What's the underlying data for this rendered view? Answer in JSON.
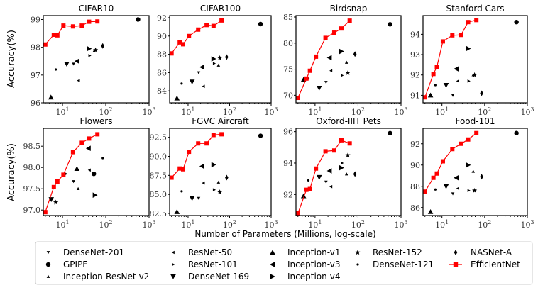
{
  "xlabel": "Number of Parameters (Millions, log-scale)",
  "ylabel": "Accuracy(%)",
  "chart_data": {
    "type": "scatter",
    "xscale": "log",
    "xlim": [
      3.6,
      1000
    ],
    "xticks": [
      "10^1",
      "10^2",
      "10^3"
    ],
    "effnet_params": [
      4,
      6.3,
      7.6,
      10.5,
      17.5,
      28,
      41,
      64
    ],
    "effnet_color": "#ff0000",
    "models": [
      {
        "name": "DenseNet-201",
        "marker": "tri-down-small",
        "params": 18
      },
      {
        "name": "ResNet-50",
        "marker": "tri-left-small",
        "params": 23.5
      },
      {
        "name": "Inception-v1",
        "marker": "tri-up",
        "params": 5.4
      },
      {
        "name": "ResNet-152",
        "marker": "star",
        "params": 58
      },
      {
        "name": "NASNet-A",
        "marker": "thin-diamond",
        "params": 85
      },
      {
        "name": "GPIPE",
        "marker": "octagon",
        "params": 556
      },
      {
        "name": "ResNet-101",
        "marker": "tri-right-small",
        "params": 42.5
      },
      {
        "name": "Inception-v3",
        "marker": "tri-left",
        "params": 21.8
      },
      {
        "name": "DenseNet-121",
        "marker": "dot",
        "params": 7
      },
      {
        "name": "EfficientNet",
        "marker": "square-line",
        "params": null
      },
      {
        "name": "Inception-ResNet-v2",
        "marker": "tri-up-small",
        "params": 54
      },
      {
        "name": "DenseNet-169",
        "marker": "tri-down",
        "params": 12.5
      },
      {
        "name": "Inception-v4",
        "marker": "tri-right",
        "params": 41
      }
    ],
    "panels": [
      {
        "title": "CIFAR10",
        "ylim": [
          96,
          99.14
        ],
        "yticks": [
          "96",
          "97",
          "98",
          "99"
        ],
        "efficientnet": [
          98.1,
          98.45,
          98.43,
          98.78,
          98.75,
          98.78,
          98.92,
          98.93
        ],
        "baselines": {
          "DenseNet-201": 97.4,
          "ResNet-50": 96.8,
          "Inception-v1": 96.2,
          "ResNet-152": 97.9,
          "NASNet-A": 98.05,
          "GPIPE": 99.0,
          "ResNet-101": 97.7,
          "Inception-v3": 97.5,
          "DenseNet-121": 97.2,
          "Inception-ResNet-v2": 97.87,
          "DenseNet-169": 97.4,
          "Inception-v4": 97.95
        }
      },
      {
        "title": "CIFAR100",
        "ylim": [
          82.7,
          92.23
        ],
        "yticks": [
          "84",
          "86",
          "88",
          "90",
          "92"
        ],
        "efficientnet": [
          88.1,
          89.3,
          89.1,
          90.0,
          90.7,
          91.2,
          91.1,
          91.7
        ],
        "baselines": {
          "DenseNet-201": 86.0,
          "ResNet-50": 84.5,
          "Inception-v1": 83.2,
          "ResNet-152": 87.6,
          "NASNet-A": 87.7,
          "GPIPE": 91.3,
          "ResNet-101": 87.0,
          "Inception-v3": 86.6,
          "DenseNet-121": 84.8,
          "Inception-ResNet-v2": 86.8,
          "DenseNet-169": 85.0,
          "Inception-v4": 87.5
        }
      },
      {
        "title": "Birdsnap",
        "ylim": [
          68.55,
          85.27
        ],
        "yticks": [
          "70",
          "75",
          "80",
          "85"
        ],
        "efficientnet": [
          69.5,
          73.2,
          74.7,
          77.4,
          81.0,
          82.0,
          82.8,
          84.3
        ],
        "baselines": {
          "DenseNet-201": 72.5,
          "ResNet-50": 74.7,
          "Inception-v1": 73.0,
          "ResNet-152": 74.3,
          "NASNet-A": 77.9,
          "GPIPE": 83.6,
          "ResNet-101": 73.8,
          "Inception-v3": 77.2,
          "DenseNet-121": 73.2,
          "Inception-ResNet-v2": 76.3,
          "DenseNet-169": 71.4,
          "Inception-v4": 78.4
        }
      },
      {
        "title": "Stanford Cars",
        "ylim": [
          90.63,
          94.92
        ],
        "yticks": [
          "91",
          "92",
          "93",
          "94"
        ],
        "efficientnet": [
          90.9,
          92.05,
          92.4,
          93.65,
          93.95,
          93.97,
          94.6,
          94.7
        ],
        "baselines": {
          "DenseNet-201": 91.0,
          "ResNet-50": 91.7,
          "Inception-v1": 91.0,
          "ResNet-152": 92.0,
          "NASNet-A": 91.1,
          "GPIPE": 94.6,
          "ResNet-101": 91.7,
          "Inception-v3": 92.3,
          "DenseNet-121": 91.5,
          "Inception-ResNet-v2": 92.0,
          "DenseNet-169": 91.5,
          "Inception-v4": 93.3
        }
      },
      {
        "title": "Flowers",
        "ylim": [
          96.87,
          98.92
        ],
        "yticks": [
          "97.0",
          "97.5",
          "98.0",
          "98.5"
        ],
        "efficientnet": [
          96.95,
          97.54,
          97.67,
          97.83,
          98.36,
          98.58,
          98.68,
          98.78
        ],
        "baselines": {
          "DenseNet-169": [
            5.5,
            97.25
          ],
          "ResNet-152": [
            7,
            97.18
          ],
          "ResNet-101": [
            12,
            97.85
          ],
          "DenseNet-201": [
            18,
            97.67
          ],
          "Inception-ResNet-v2": [
            23,
            97.5
          ],
          "Inception-v1": [
            21.5,
            97.97
          ],
          "ResNet-50": [
            42,
            97.94
          ],
          "Inception-v3": [
            40,
            98.45
          ],
          "GPIPE": [
            53,
            97.85
          ],
          "Inception-v4": [
            56,
            97.35
          ],
          "DenseNet-121": [
            85,
            98.22
          ]
        }
      },
      {
        "title": "FGVC Aircraft",
        "ylim": [
          82.22,
          93.68
        ],
        "yticks": [
          "82.5",
          "85.0",
          "87.5",
          "90.0",
          "92.5"
        ],
        "efficientnet": [
          87.2,
          88.4,
          88.3,
          90.6,
          91.7,
          91.7,
          92.8,
          92.9
        ],
        "baselines": {
          "DenseNet-201": 84.5,
          "ResNet-50": 86.5,
          "Inception-v1": 82.7,
          "ResNet-152": 85.3,
          "NASNet-A": 87.2,
          "GPIPE": 92.7,
          "ResNet-101": 85.6,
          "Inception-v3": 88.7,
          "DenseNet-121": 85.4,
          "Inception-ResNet-v2": 86.6,
          "DenseNet-169": 84.5,
          "Inception-v4": 88.9
        }
      },
      {
        "title": "Oxford-IIIT Pets",
        "ylim": [
          90.66,
          96.21
        ],
        "yticks": [
          "92",
          "94",
          "96"
        ],
        "efficientnet": [
          90.8,
          92.3,
          92.35,
          93.65,
          94.75,
          94.8,
          95.45,
          95.25
        ],
        "baselines": {
          "DenseNet-201": 92.8,
          "ResNet-50": 92.5,
          "Inception-v1": 91.9,
          "ResNet-152": 94.5,
          "NASNet-A": 93.3,
          "GPIPE": 95.9,
          "ResNet-101": 94.0,
          "Inception-v3": 93.5,
          "DenseNet-121": 92.9,
          "Inception-ResNet-v2": 93.3,
          "DenseNet-169": 93.1,
          "Inception-v4": 93.7
        }
      },
      {
        "title": "Food-101",
        "ylim": [
          85.25,
          93.45
        ],
        "yticks": [
          "86",
          "88",
          "90",
          "92"
        ],
        "efficientnet": [
          87.5,
          88.8,
          89.2,
          90.35,
          91.5,
          92.0,
          92.4,
          93.0
        ],
        "baselines": {
          "DenseNet-201": 87.3,
          "ResNet-50": 87.8,
          "Inception-v1": 85.6,
          "ResNet-152": 87.6,
          "NASNet-A": 88.9,
          "GPIPE": 93.0,
          "ResNet-101": 87.6,
          "Inception-v3": 88.8,
          "DenseNet-121": 87.7,
          "Inception-ResNet-v2": 89.4,
          "DenseNet-169": 88.0,
          "Inception-v4": 90.0
        }
      }
    ]
  }
}
